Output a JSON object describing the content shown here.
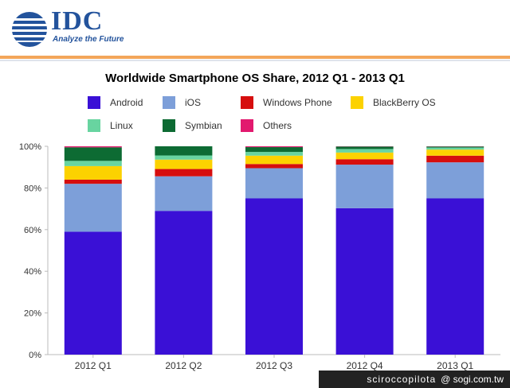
{
  "header": {
    "logo_text": "IDC",
    "tagline": "Analyze the Future"
  },
  "colors": {
    "Android": "#3a10d6",
    "iOS": "#7d9fd9",
    "Windows Phone": "#d60e0e",
    "BlackBerry OS": "#fcd200",
    "Linux": "#68d4a0",
    "Symbian": "#0d6b33",
    "Others": "#e2196e"
  },
  "watermark": {
    "user": "sciroccopilota",
    "site": "@ sogi.com.tw"
  },
  "chart_data": {
    "type": "bar",
    "stacked": true,
    "title": "Worldwide Smartphone OS Share, 2012 Q1 - 2013 Q1",
    "xlabel": "",
    "ylabel": "",
    "ylim": [
      0,
      100
    ],
    "y_ticks": [
      "0%",
      "20%",
      "40%",
      "60%",
      "80%",
      "100%"
    ],
    "categories": [
      "2012 Q1",
      "2012 Q2",
      "2012 Q3",
      "2012 Q4",
      "2013 Q1"
    ],
    "series": [
      {
        "name": "Android",
        "values": [
          59.0,
          69.0,
          75.0,
          70.3,
          75.0
        ]
      },
      {
        "name": "iOS",
        "values": [
          23.0,
          16.6,
          14.5,
          20.9,
          17.3
        ]
      },
      {
        "name": "Windows Phone",
        "values": [
          2.0,
          3.5,
          2.0,
          2.6,
          3.2
        ]
      },
      {
        "name": "BlackBerry OS",
        "values": [
          6.5,
          4.5,
          4.0,
          3.2,
          2.9
        ]
      },
      {
        "name": "Linux",
        "values": [
          2.5,
          2.0,
          1.8,
          1.7,
          1.0
        ]
      },
      {
        "name": "Symbian",
        "values": [
          6.5,
          4.4,
          2.3,
          1.2,
          0.5
        ]
      },
      {
        "name": "Others",
        "values": [
          0.5,
          0.0,
          0.4,
          0.1,
          0.1
        ]
      }
    ],
    "legend": [
      "Android",
      "iOS",
      "Windows Phone",
      "BlackBerry OS",
      "Linux",
      "Symbian",
      "Others"
    ],
    "legend_position": "top",
    "grid": false
  }
}
